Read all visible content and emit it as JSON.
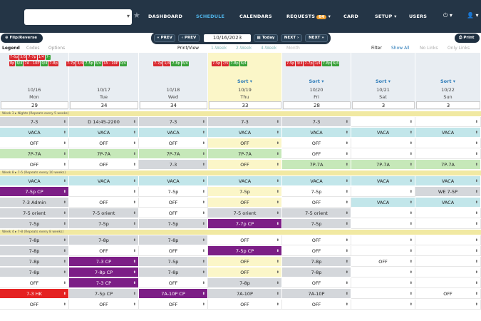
{
  "nav": {
    "items": [
      "DASHBOARD",
      "SCHEDULE",
      "CALENDARS",
      "REQUESTS",
      "CARD",
      "SETUP",
      "USERS"
    ],
    "requests_badge": "64"
  },
  "toolbar": {
    "flip": "Flip/Reverse",
    "prev1": "« PREV",
    "prev2": "‹ PREV",
    "date": "10/16/2023",
    "today": "Today",
    "next1": "NEXT ›",
    "next2": "NEXT »",
    "print": "Print"
  },
  "legend": {
    "legend": "Legend",
    "codes": "Codes",
    "options": "Options",
    "printview": "Print/View",
    "w1": "1-Week",
    "w2": "2-Week",
    "w4": "4-Week",
    "month": "Month",
    "filter": "Filter",
    "showall": "Show All",
    "nolinks": "No Links",
    "onlylinks": "Only Links"
  },
  "days": [
    {
      "date": "10/16",
      "day": "Mon",
      "count": "29",
      "sort": ""
    },
    {
      "date": "10/17",
      "day": "Tue",
      "count": "34",
      "sort": ""
    },
    {
      "date": "10/18",
      "day": "Wed",
      "count": "34",
      "sort": ""
    },
    {
      "date": "10/19",
      "day": "Thu",
      "count": "33",
      "sort": "Sort ▾"
    },
    {
      "date": "10/20",
      "day": "Fri",
      "count": "28",
      "sort": "Sort ▾"
    },
    {
      "date": "10/21",
      "day": "Sat",
      "count": "3",
      "sort": "Sort ▾"
    },
    {
      "date": "10/22",
      "day": "Sun",
      "count": "3",
      "sort": "Sort ▾"
    }
  ],
  "sections": {
    "s1": "Week 3 ▸           Nights (Repeats every 5 weeks)",
    "s2": "Week 8 ▸           7-5 (Repeats every 10 weeks)",
    "s3": "Week 4 ▸           7-8 (Repeats every 8 weeks)"
  },
  "rows": [
    [
      "7-3",
      "D 14:45-2200",
      "7-3",
      "7-3",
      "7-3",
      "",
      ""
    ],
    [
      "VACA",
      "VACA",
      "VACA",
      "VACA",
      "VACA",
      "VACA",
      "VACA"
    ],
    [
      "OFF",
      "OFF",
      "OFF",
      "OFF",
      "OFF",
      "",
      ""
    ],
    [
      "7P-7A",
      "7P-7A",
      "7P-7A",
      "7P-7A",
      "OFF",
      "",
      ""
    ],
    [
      "OFF",
      "OFF",
      "7-3",
      "OFF",
      "7P-7A",
      "7P-7A",
      "7P-7A"
    ],
    [
      "VACA",
      "VACA",
      "VACA",
      "VACA",
      "VACA",
      "VACA",
      "VACA"
    ],
    [
      "7-5p  CP",
      "",
      "7-5p",
      "7-5p",
      "7-5p",
      "",
      "WE 7-5P"
    ],
    [
      "7-3 Admin",
      "OFF",
      "OFF",
      "OFF",
      "OFF",
      "VACA",
      "VACA"
    ],
    [
      "7-5 orient",
      "7-5 orient",
      "OFF",
      "7-5 orient",
      "7-5 orient",
      "",
      ""
    ],
    [
      "7-5p",
      "7-5p",
      "7-5p",
      "7-7p  CP",
      "7-5p",
      "",
      ""
    ],
    [
      "7-8p",
      "7-8p",
      "7-8p",
      "OFF",
      "OFF",
      "",
      ""
    ],
    [
      "7-8p",
      "OFF",
      "OFF",
      "7-5p  CP",
      "OFF",
      "",
      ""
    ],
    [
      "7-8p",
      "7-3  CP",
      "7-5p",
      "OFF",
      "7-8p",
      "OFF",
      ""
    ],
    [
      "7-8p",
      "7-8p  CP",
      "7-8p",
      "OFF",
      "7-8p",
      "",
      ""
    ],
    [
      "OFF",
      "7-3  CP",
      "OFF",
      "7-8p",
      "OFF",
      "",
      ""
    ],
    [
      "7-3  HK",
      "7-5p  CP",
      "7A-10P  CP",
      "7A-10P",
      "7A-10P",
      "",
      "OFF"
    ],
    [
      "OFF",
      "OFF",
      "OFF",
      "OFF",
      "OFF",
      "",
      ""
    ]
  ]
}
